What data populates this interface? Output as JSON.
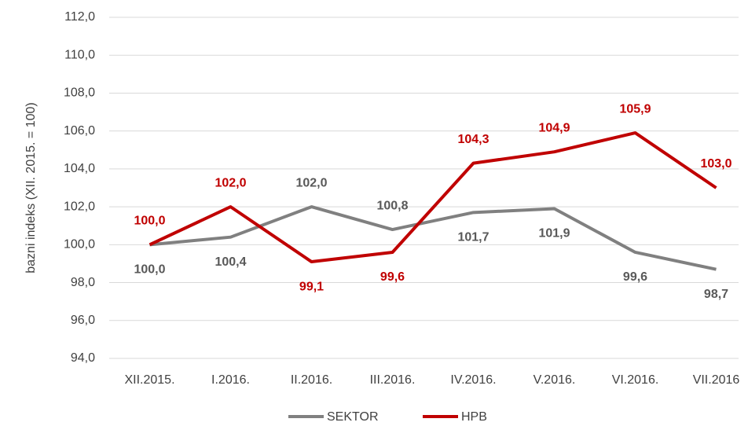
{
  "chart_data": {
    "type": "line",
    "y_label": "bazni indeks (XII. 2015. = 100)",
    "categories": [
      "XII.2015.",
      "I.2016.",
      "II.2016.",
      "III.2016.",
      "IV.2016.",
      "V.2016.",
      "VI.2016.",
      "VII.2016"
    ],
    "series": [
      {
        "name": "SEKTOR",
        "color": "#808080",
        "label_color": "#595959",
        "values": [
          100.0,
          100.4,
          102.0,
          100.8,
          101.7,
          101.9,
          99.6,
          98.7
        ],
        "value_labels": [
          "100,0",
          "100,4",
          "102,0",
          "100,8",
          "101,7",
          "101,9",
          "99,6",
          "98,7"
        ]
      },
      {
        "name": "HPB",
        "color": "#c00000",
        "label_color": "#c00000",
        "values": [
          100.0,
          102.0,
          99.1,
          99.6,
          104.3,
          104.9,
          105.9,
          103.0
        ],
        "value_labels": [
          "100,0",
          "102,0",
          "99,1",
          "99,6",
          "104,3",
          "104,9",
          "105,9",
          "103,0"
        ]
      }
    ],
    "ylim": [
      94,
      112
    ],
    "yticks": [
      {
        "value": 94,
        "label": "94,0"
      },
      {
        "value": 96,
        "label": "96,0"
      },
      {
        "value": 98,
        "label": "98,0"
      },
      {
        "value": 100,
        "label": "100,0"
      },
      {
        "value": 102,
        "label": "102,0"
      },
      {
        "value": 104,
        "label": "104,0"
      },
      {
        "value": 106,
        "label": "106,0"
      },
      {
        "value": 108,
        "label": "108,0"
      },
      {
        "value": 110,
        "label": "110,0"
      },
      {
        "value": 112,
        "label": "112,0"
      }
    ],
    "grid": true,
    "legend": "bottom"
  }
}
